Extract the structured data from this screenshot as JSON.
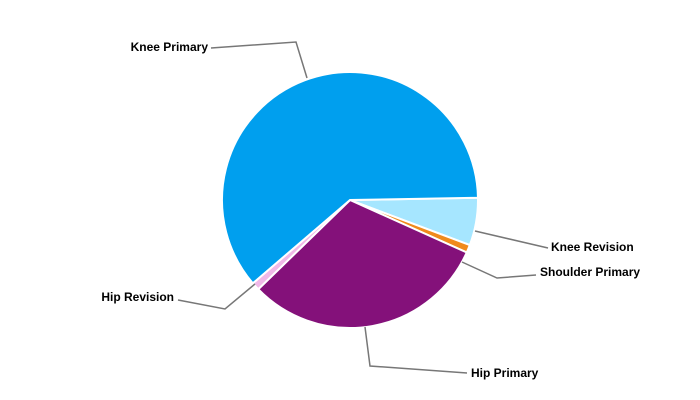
{
  "chart_data": {
    "type": "pie",
    "categories": [
      "Knee Revision",
      "Shoulder Primary",
      "Hip Primary",
      "Hip Revision",
      "Knee Primary"
    ],
    "values": [
      6,
      1,
      31,
      1,
      61
    ],
    "colors": [
      "#a6e6ff",
      "#f08a1c",
      "#84117a",
      "#f0b8e8",
      "#009fee"
    ]
  }
}
